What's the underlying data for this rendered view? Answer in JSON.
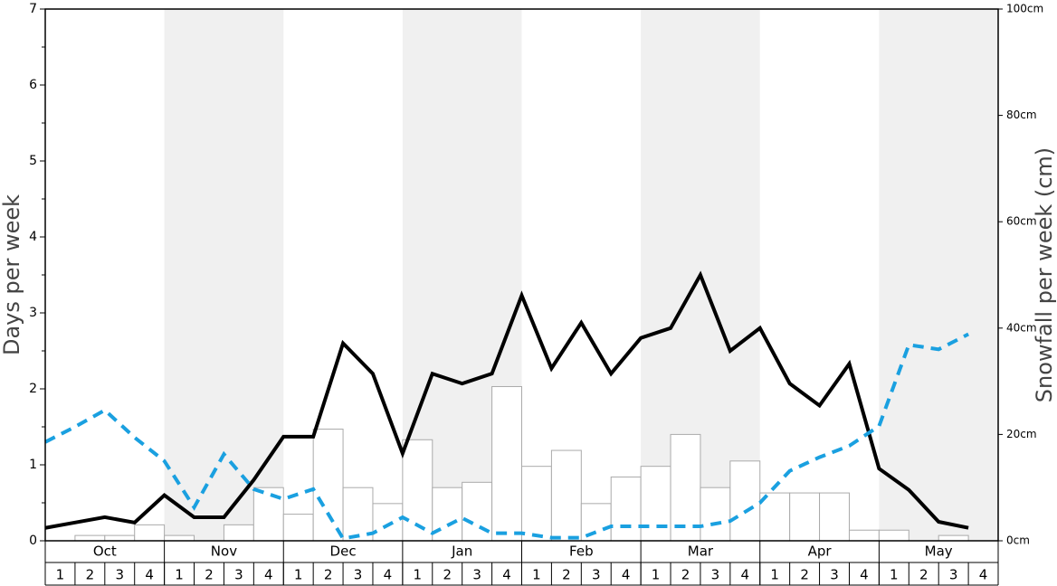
{
  "chart_data": {
    "type": "bar",
    "ylabel": "Days per week",
    "y2label": "Snowfall per week (cm)",
    "months": [
      "Oct",
      "Nov",
      "Dec",
      "Jan",
      "Feb",
      "Mar",
      "Apr",
      "May"
    ],
    "categories": [
      "1",
      "2",
      "3",
      "4",
      "1",
      "2",
      "3",
      "4",
      "1",
      "2",
      "3",
      "4",
      "1",
      "2",
      "3",
      "4",
      "1",
      "2",
      "3",
      "4",
      "1",
      "2",
      "3",
      "4",
      "1",
      "2",
      "3",
      "4",
      "1",
      "2",
      "3",
      "4"
    ],
    "ylim": [
      0,
      7
    ],
    "yticks": [
      0,
      1,
      2,
      3,
      4,
      5,
      6,
      7
    ],
    "y2lim": [
      0,
      100
    ],
    "y2ticks": [
      {
        "value": 0,
        "label": "0cm"
      },
      {
        "value": 20,
        "label": "20cm"
      },
      {
        "value": 40,
        "label": "40cm"
      },
      {
        "value": 60,
        "label": "60cm"
      },
      {
        "value": 80,
        "label": "80cm"
      },
      {
        "value": 100,
        "label": "100cm"
      }
    ],
    "series": [
      {
        "type": "bar",
        "axis": "y2",
        "color": "#ffffff",
        "values": [
          0,
          1,
          1,
          3,
          1,
          0,
          3,
          10,
          5,
          21,
          10,
          7,
          19,
          10,
          11,
          29,
          14,
          17,
          7,
          12,
          14,
          20,
          10,
          15,
          9,
          9,
          9,
          2,
          2,
          0,
          1,
          0
        ]
      },
      {
        "type": "line",
        "color": "#000000",
        "values": [
          0.17,
          0.24,
          0.31,
          0.24,
          0.6,
          0.31,
          0.31,
          0.8,
          1.37,
          1.37,
          2.6,
          2.2,
          1.15,
          2.2,
          2.07,
          2.2,
          3.23,
          2.27,
          2.87,
          2.2,
          2.67,
          2.8,
          3.5,
          2.5,
          2.8,
          2.07,
          1.78,
          2.33,
          0.95,
          0.67,
          0.25,
          0.17
        ]
      },
      {
        "type": "line",
        "color": "#1aa0e0",
        "dashed": true,
        "values": [
          1.3,
          1.5,
          1.72,
          1.36,
          1.05,
          0.44,
          1.14,
          0.68,
          0.55,
          0.68,
          0.03,
          0.1,
          0.31,
          0.1,
          0.3,
          0.1,
          0.1,
          0.04,
          0.04,
          0.19,
          0.19,
          0.19,
          0.19,
          0.26,
          0.5,
          0.92,
          1.1,
          1.25,
          1.51,
          2.58,
          2.52,
          2.72
        ]
      }
    ]
  }
}
